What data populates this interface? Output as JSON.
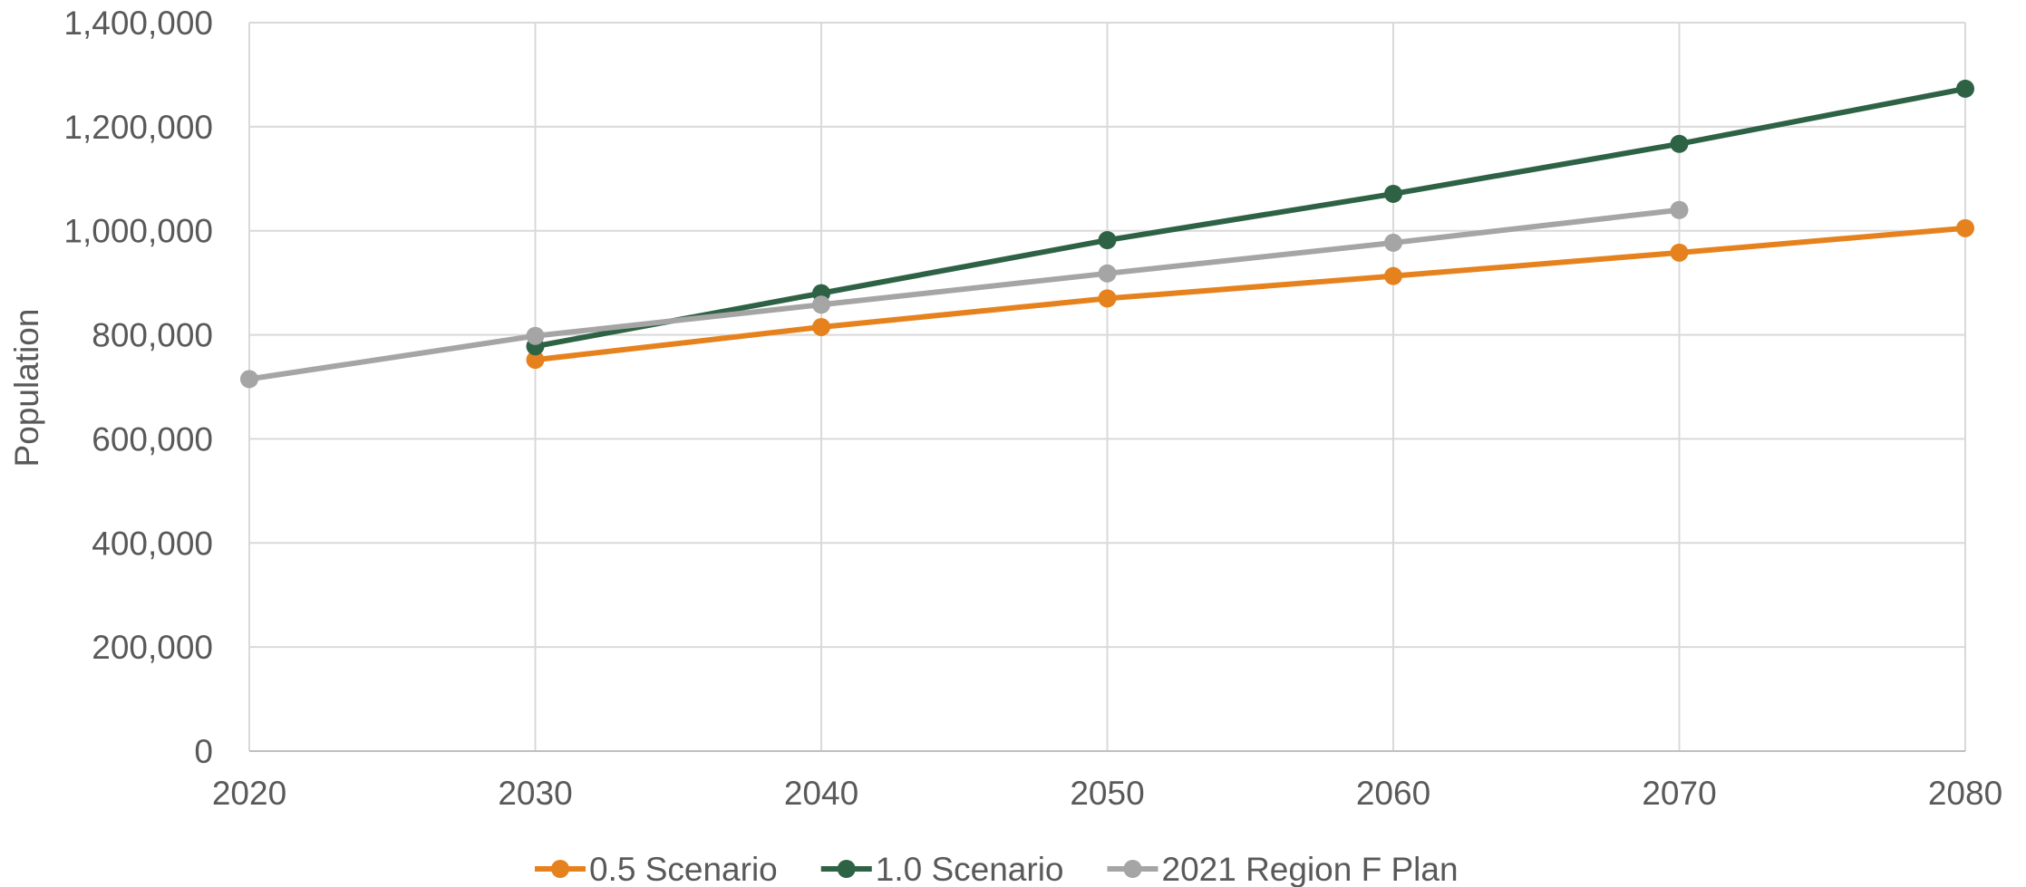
{
  "chart_data": {
    "type": "line",
    "x": [
      2020,
      2030,
      2040,
      2050,
      2060,
      2070,
      2080
    ],
    "x_tick_labels": [
      "2020",
      "2030",
      "2040",
      "2050",
      "2060",
      "2070",
      "2080"
    ],
    "ylabel": "Population",
    "ylim": [
      0,
      1400000
    ],
    "y_tick_labels": [
      "0",
      "200,000",
      "400,000",
      "600,000",
      "800,000",
      "1,000,000",
      "1,200,000",
      "1,400,000"
    ],
    "grid": true,
    "legend_position": "bottom",
    "series": [
      {
        "name": "0.5 Scenario",
        "color": "#e6821e",
        "x": [
          2030,
          2040,
          2050,
          2060,
          2070,
          2080
        ],
        "values": [
          752000,
          815000,
          870000,
          913000,
          958000,
          1005000
        ]
      },
      {
        "name": "1.0 Scenario",
        "color": "#2e6245",
        "x": [
          2030,
          2040,
          2050,
          2060,
          2070,
          2080
        ],
        "values": [
          778000,
          880000,
          982000,
          1071000,
          1167000,
          1273000
        ]
      },
      {
        "name": "2021 Region F Plan",
        "color": "#a5a5a5",
        "x": [
          2020,
          2030,
          2040,
          2050,
          2060,
          2070
        ],
        "values": [
          715000,
          798000,
          858000,
          918000,
          977000,
          1040000
        ]
      }
    ]
  }
}
